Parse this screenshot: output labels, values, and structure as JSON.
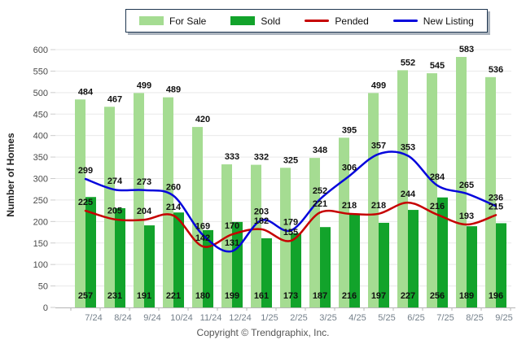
{
  "legend": {
    "items": [
      {
        "label": "For Sale",
        "swatch": "box",
        "color": "#a5dc92"
      },
      {
        "label": "Sold",
        "swatch": "box",
        "color": "#12a32b"
      },
      {
        "label": "Pended",
        "swatch": "line",
        "color": "#c60000"
      },
      {
        "label": "New Listing",
        "swatch": "line",
        "color": "#0606dc"
      }
    ]
  },
  "y_axis": {
    "label": "Number of Homes",
    "min": 0,
    "max": 600,
    "step": 50
  },
  "footer": {
    "copyright": "Copyright © Trendgraphix, Inc."
  },
  "chart_data": {
    "type": "combo",
    "title": "",
    "xlabel": "",
    "ylabel": "Number of Homes",
    "ylim": [
      0,
      600
    ],
    "ytick_step": 50,
    "grid": true,
    "legend_position": "top",
    "categories": [
      "7/24",
      "8/24",
      "9/24",
      "10/24",
      "11/24",
      "12/24",
      "1/25",
      "2/25",
      "3/25",
      "4/25",
      "5/25",
      "6/25",
      "7/25",
      "8/25",
      "9/25"
    ],
    "series": [
      {
        "name": "For Sale",
        "type": "bar",
        "color": "#a5dc92",
        "values": [
          484,
          467,
          499,
          489,
          420,
          333,
          332,
          325,
          348,
          395,
          499,
          552,
          545,
          583,
          536
        ]
      },
      {
        "name": "Sold",
        "type": "bar",
        "color": "#12a32b",
        "values": [
          257,
          231,
          191,
          221,
          180,
          199,
          161,
          173,
          187,
          216,
          197,
          227,
          256,
          189,
          196
        ]
      },
      {
        "name": "Pended",
        "type": "line",
        "color": "#c60000",
        "values": [
          225,
          205,
          204,
          214,
          142,
          170,
          182,
          155,
          221,
          218,
          218,
          244,
          216,
          193,
          215
        ]
      },
      {
        "name": "New Listing",
        "type": "line",
        "color": "#0606dc",
        "values": [
          299,
          274,
          273,
          260,
          169,
          131,
          203,
          179,
          252,
          306,
          357,
          353,
          284,
          265,
          236
        ]
      }
    ]
  }
}
